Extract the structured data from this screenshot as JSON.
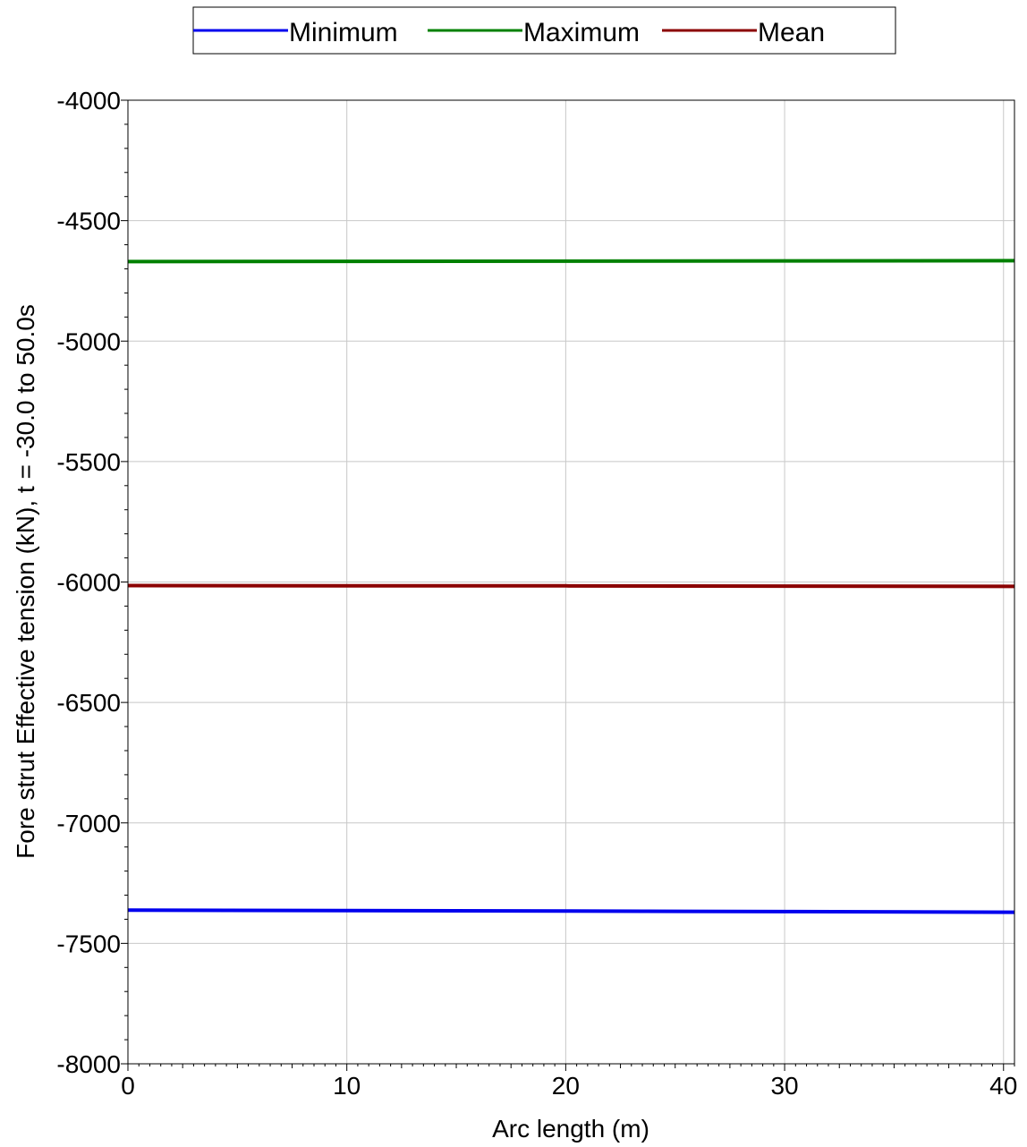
{
  "chart_data": {
    "type": "line",
    "title": "",
    "xlabel": "Arc length (m)",
    "ylabel": "Fore strut Effective tension (kN), t = -30.0 to 50.0s",
    "xlim": [
      0,
      40.5
    ],
    "ylim": [
      -8000,
      -4000
    ],
    "xticks": [
      0,
      10,
      20,
      30,
      40
    ],
    "xtick_labels": [
      "0",
      "10",
      "20",
      "30",
      "40"
    ],
    "yticks": [
      -4000,
      -4500,
      -5000,
      -5500,
      -6000,
      -6500,
      -7000,
      -7500,
      -8000
    ],
    "ytick_labels": [
      "-4000",
      "-4500",
      "-5000",
      "-5500",
      "-6000",
      "-6500",
      "-7000",
      "-7500",
      "-8000"
    ],
    "grid": true,
    "legend_position": "top-center",
    "series": [
      {
        "name": "Minimum",
        "color": "#0000ee",
        "x": [
          0,
          10,
          20,
          30,
          40.5
        ],
        "y": [
          -7362,
          -7364,
          -7366,
          -7368,
          -7371
        ]
      },
      {
        "name": "Maximum",
        "color": "#008000",
        "x": [
          0,
          10,
          20,
          30,
          40.5
        ],
        "y": [
          -4670,
          -4669,
          -4668,
          -4667,
          -4666
        ]
      },
      {
        "name": "Mean",
        "color": "#8b0000",
        "x": [
          0,
          10,
          20,
          30,
          40.5
        ],
        "y": [
          -6015,
          -6016,
          -6016,
          -6017,
          -6018
        ]
      }
    ]
  }
}
